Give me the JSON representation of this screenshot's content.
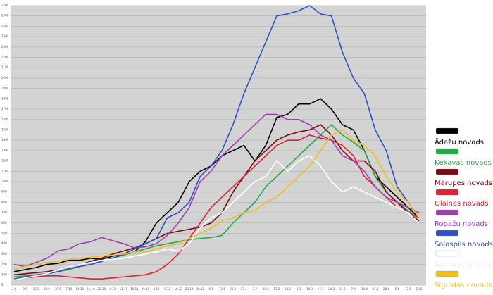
{
  "chart_data": {
    "type": "line",
    "categories": [
      "2.9",
      "9.9",
      "16.9",
      "23.9",
      "30.9",
      "7.10",
      "14.10",
      "21.10",
      "28.10",
      "4.11",
      "11.11",
      "18.11",
      "25.11",
      "2.12",
      "9.12",
      "16.12",
      "23.12",
      "30.12",
      "6.1",
      "13.1",
      "20.1",
      "27.1",
      "3.2",
      "10.2",
      "17.2",
      "24.2",
      "3.3",
      "10.3",
      "17.3",
      "24.3",
      "31.3",
      "7.4",
      "14.4",
      "21.4",
      "28.4",
      "5.5",
      "12.5",
      "19.5"
    ],
    "series": [
      {
        "name": "Ādažu novads",
        "color": "#000000",
        "values": [
          130,
          150,
          170,
          200,
          210,
          240,
          240,
          260,
          250,
          280,
          300,
          320,
          420,
          600,
          700,
          800,
          1000,
          1100,
          1150,
          1250,
          1300,
          1350,
          1200,
          1350,
          1620,
          1650,
          1750,
          1750,
          1800,
          1700,
          1550,
          1500,
          1300,
          1050,
          950,
          850,
          750,
          650
        ]
      },
      {
        "name": "Ķekavas novads",
        "color": "#22aa44",
        "values": [
          80,
          90,
          100,
          110,
          130,
          150,
          180,
          200,
          230,
          260,
          290,
          320,
          350,
          380,
          400,
          420,
          440,
          450,
          460,
          480,
          600,
          700,
          800,
          950,
          1050,
          1150,
          1250,
          1350,
          1450,
          1550,
          1450,
          1380,
          1300,
          1050,
          900,
          800,
          720,
          650
        ]
      },
      {
        "name": "Mārupes novads",
        "color": "#7a0a14",
        "values": [
          100,
          110,
          120,
          130,
          150,
          180,
          200,
          230,
          260,
          300,
          330,
          360,
          400,
          450,
          500,
          520,
          540,
          560,
          600,
          700,
          900,
          1050,
          1200,
          1300,
          1400,
          1450,
          1480,
          1500,
          1550,
          1450,
          1300,
          1200,
          1200,
          1100,
          900,
          800,
          700,
          620
        ]
      },
      {
        "name": "Olaines novads",
        "color": "#dd2233",
        "values": [
          60,
          70,
          80,
          90,
          90,
          80,
          70,
          60,
          60,
          70,
          80,
          90,
          100,
          130,
          200,
          300,
          450,
          600,
          750,
          850,
          950,
          1050,
          1150,
          1250,
          1350,
          1400,
          1400,
          1450,
          1420,
          1400,
          1350,
          1250,
          1050,
          950,
          850,
          750,
          700,
          650
        ]
      },
      {
        "name": "Ropažu novads",
        "color": "#a040b0",
        "values": [
          200,
          180,
          220,
          260,
          330,
          350,
          400,
          420,
          460,
          430,
          400,
          360,
          370,
          400,
          480,
          600,
          750,
          1000,
          1100,
          1250,
          1350,
          1450,
          1550,
          1650,
          1650,
          1600,
          1600,
          1550,
          1450,
          1400,
          1250,
          1200,
          1100,
          950,
          850,
          800,
          750,
          700
        ]
      },
      {
        "name": "Salaspils novads",
        "color": "#3050c8",
        "values": [
          60,
          80,
          100,
          110,
          130,
          160,
          180,
          200,
          230,
          260,
          300,
          350,
          400,
          450,
          650,
          700,
          800,
          1050,
          1150,
          1300,
          1550,
          1850,
          2100,
          2350,
          2600,
          2620,
          2650,
          2700,
          2620,
          2600,
          2250,
          2000,
          1850,
          1500,
          1300,
          950,
          800,
          650
        ]
      },
      {
        "name": "Saulkrastu novads",
        "color": "#ffffff",
        "values": [
          50,
          70,
          90,
          110,
          150,
          180,
          200,
          220,
          240,
          250,
          260,
          280,
          300,
          320,
          350,
          330,
          400,
          550,
          650,
          700,
          800,
          900,
          1000,
          1050,
          1200,
          1100,
          1200,
          1250,
          1150,
          1000,
          900,
          950,
          900,
          850,
          800,
          750,
          700,
          600
        ]
      },
      {
        "name": "Siguldas novads",
        "color": "#f0c020",
        "values": [
          150,
          180,
          200,
          220,
          230,
          250,
          260,
          270,
          280,
          290,
          300,
          320,
          320,
          350,
          380,
          400,
          450,
          500,
          550,
          620,
          650,
          700,
          720,
          800,
          850,
          950,
          1050,
          1150,
          1300,
          1450,
          1500,
          1400,
          1350,
          1250,
          1050,
          900,
          800,
          650
        ]
      }
    ],
    "ylim": [
      0,
      2700
    ],
    "yticks": [
      0,
      100,
      200,
      300,
      400,
      500,
      600,
      700,
      800,
      900,
      1000,
      1100,
      1200,
      1300,
      1400,
      1500,
      1600,
      1700,
      1800,
      1900,
      2000,
      2100,
      2200,
      2300,
      2400,
      2500,
      2600,
      2700
    ],
    "grid": true
  }
}
